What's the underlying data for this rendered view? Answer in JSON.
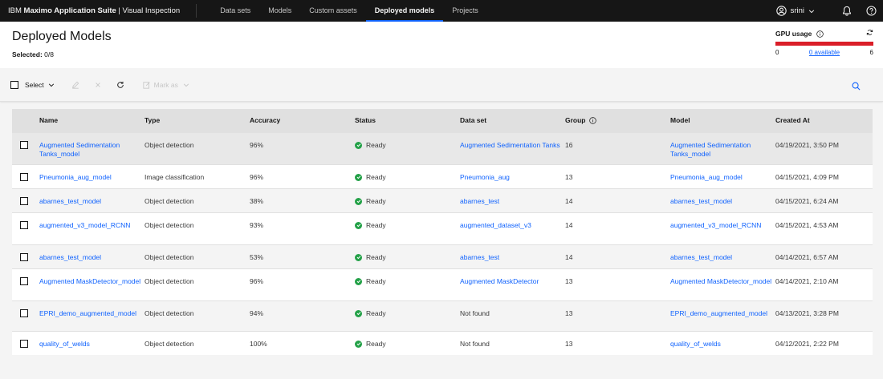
{
  "topbar": {
    "brand_prefix": "IBM ",
    "brand_bold": "Maximo Application Suite",
    "brand_suffix": " | Visual Inspection",
    "nav": [
      "Data sets",
      "Models",
      "Custom assets",
      "Deployed models",
      "Projects"
    ],
    "active_nav": "Deployed models",
    "user": "srini"
  },
  "header": {
    "title": "Deployed Models",
    "selected_label": "Selected:",
    "selected_value": "0/8"
  },
  "gpu": {
    "title": "GPU usage",
    "min": "0",
    "available": "0 available",
    "max": "6",
    "used_fraction": 1.0,
    "bar_color": "#da1e28"
  },
  "toolbar": {
    "select_label": "Select",
    "mark_as_label": "Mark as",
    "icons": [
      "edit-icon",
      "close-icon",
      "refresh-icon",
      "mark-as-icon",
      "search-icon"
    ]
  },
  "table": {
    "headers": [
      "Name",
      "Type",
      "Accuracy",
      "Status",
      "Data set",
      "Group",
      "Model",
      "Created At"
    ],
    "rows": [
      {
        "name": "Augmented Sedimentation Tanks_model",
        "type": "Object detection",
        "accuracy": "96%",
        "status": "Ready",
        "dataset": "Augmented Sedimentation Tanks",
        "dataset_link": true,
        "group": "16",
        "model": "Augmented Sedimentation Tanks_model",
        "created": "04/19/2021, 3:50 PM"
      },
      {
        "name": "Pneumonia_aug_model",
        "type": "Image classification",
        "accuracy": "96%",
        "status": "Ready",
        "dataset": "Pneumonia_aug",
        "dataset_link": true,
        "group": "13",
        "model": "Pneumonia_aug_model",
        "created": "04/15/2021, 4:09 PM"
      },
      {
        "name": "abarnes_test_model",
        "type": "Object detection",
        "accuracy": "38%",
        "status": "Ready",
        "dataset": "abarnes_test",
        "dataset_link": true,
        "group": "14",
        "model": "abarnes_test_model",
        "created": "04/15/2021, 6:24 AM"
      },
      {
        "name": "augmented_v3_model_RCNN",
        "type": "Object detection",
        "accuracy": "93%",
        "status": "Ready",
        "dataset": "augmented_dataset_v3",
        "dataset_link": true,
        "group": "14",
        "model": "augmented_v3_model_RCNN",
        "created": "04/15/2021, 4:53 AM"
      },
      {
        "name": "abarnes_test_model",
        "type": "Object detection",
        "accuracy": "53%",
        "status": "Ready",
        "dataset": "abarnes_test",
        "dataset_link": true,
        "group": "14",
        "model": "abarnes_test_model",
        "created": "04/14/2021, 6:57 AM"
      },
      {
        "name": "Augmented MaskDetector_model",
        "type": "Object detection",
        "accuracy": "96%",
        "status": "Ready",
        "dataset": "Augmented MaskDetector",
        "dataset_link": true,
        "group": "13",
        "model": "Augmented MaskDetector_model",
        "created": "04/14/2021, 2:10 AM"
      },
      {
        "name": "EPRI_demo_augmented_model",
        "type": "Object detection",
        "accuracy": "94%",
        "status": "Ready",
        "dataset": "Not found",
        "dataset_link": false,
        "group": "13",
        "model": "EPRI_demo_augmented_model",
        "created": "04/13/2021, 3:28 PM"
      },
      {
        "name": "quality_of_welds",
        "type": "Object detection",
        "accuracy": "100%",
        "status": "Ready",
        "dataset": "Not found",
        "dataset_link": false,
        "group": "13",
        "model": "quality_of_welds",
        "created": "04/12/2021, 2:22 PM"
      }
    ]
  },
  "colors": {
    "link": "#0f62fe",
    "ready": "#24a148",
    "topbar": "#161616"
  }
}
